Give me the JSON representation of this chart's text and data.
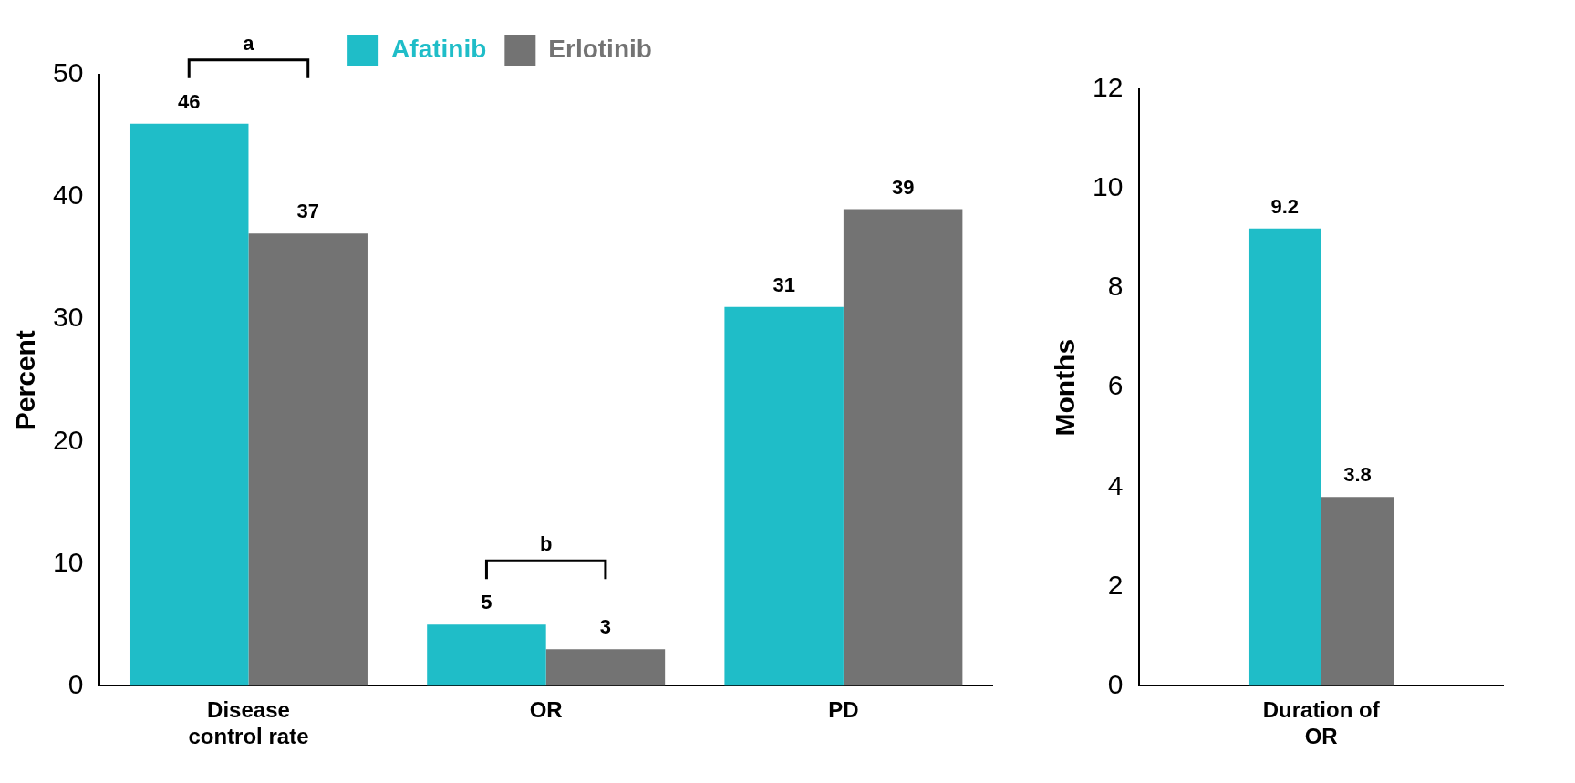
{
  "chart_data": [
    {
      "type": "bar",
      "ylabel": "Percent",
      "categories": [
        "Disease control rate",
        "OR",
        "PD"
      ],
      "series": [
        {
          "name": "Afatinib",
          "color": "#1fbdc8",
          "values": [
            46,
            5,
            31
          ]
        },
        {
          "name": "Erlotinib",
          "color": "#737373",
          "values": [
            37,
            3,
            39
          ]
        }
      ],
      "ylim": [
        0,
        50
      ],
      "yticks": [
        0,
        10,
        20,
        30,
        40,
        50
      ],
      "grid": false,
      "legend": "top",
      "data_labels": true,
      "annotations": [
        "a",
        "b"
      ]
    },
    {
      "type": "bar",
      "ylabel": "Months",
      "categories": [
        "Duration of OR"
      ],
      "series": [
        {
          "color": "#1fbdc8",
          "values": [
            9.2
          ]
        },
        {
          "color": "#737373",
          "values": [
            3.8
          ]
        }
      ],
      "ylim": [
        0,
        12
      ],
      "yticks": [
        0,
        2,
        4,
        6,
        8,
        10,
        12
      ],
      "grid": false,
      "data_labels": true
    }
  ]
}
